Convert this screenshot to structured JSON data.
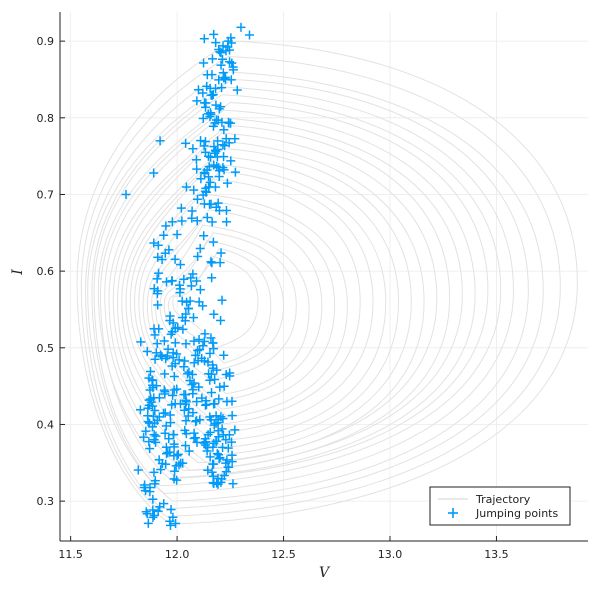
{
  "chart_data": {
    "type": "scatter",
    "xlabel": "V",
    "ylabel": "I",
    "xlim": [
      11.45,
      13.93
    ],
    "ylim": [
      0.248,
      0.938
    ],
    "x_ticks": [
      11.5,
      12.0,
      12.5,
      13.0,
      13.5
    ],
    "x_tick_labels": [
      "11.5",
      "12.0",
      "12.5",
      "13.0",
      "13.5"
    ],
    "y_ticks": [
      0.3,
      0.4,
      0.5,
      0.6,
      0.7,
      0.8,
      0.9
    ],
    "y_tick_labels": [
      "0.3",
      "0.4",
      "0.5",
      "0.6",
      "0.7",
      "0.8",
      "0.9"
    ],
    "grid": true,
    "legend_position": "bottom-right",
    "colors": {
      "trajectory": "#e2e2e2",
      "points": "#009af9",
      "grid": "#ebebeb",
      "axis": "#222222"
    },
    "series": [
      {
        "name": "Trajectory",
        "kind": "line",
        "curves": [
          {
            "top": [
              12.26,
              0.9
            ],
            "bottom": [
              11.97,
              0.27
            ],
            "vmax": 13.88,
            "vmin_left": 11.53
          },
          {
            "top": [
              12.24,
              0.88
            ],
            "bottom": [
              11.95,
              0.28
            ],
            "vmax": 13.8,
            "vmin_left": 11.55
          },
          {
            "top": [
              12.22,
              0.86
            ],
            "bottom": [
              11.93,
              0.29
            ],
            "vmax": 13.72,
            "vmin_left": 11.57
          },
          {
            "top": [
              12.26,
              0.85
            ],
            "bottom": [
              11.98,
              0.3
            ],
            "vmax": 13.65,
            "vmin_left": 11.58
          },
          {
            "top": [
              12.23,
              0.84
            ],
            "bottom": [
              11.94,
              0.31
            ],
            "vmax": 13.58,
            "vmin_left": 11.6
          },
          {
            "top": [
              12.21,
              0.83
            ],
            "bottom": [
              11.92,
              0.32
            ],
            "vmax": 13.52,
            "vmin_left": 11.61
          },
          {
            "top": [
              12.25,
              0.82
            ],
            "bottom": [
              12.0,
              0.33
            ],
            "vmax": 13.46,
            "vmin_left": 11.63
          },
          {
            "top": [
              12.22,
              0.81
            ],
            "bottom": [
              11.96,
              0.33
            ],
            "vmax": 13.4,
            "vmin_left": 11.64
          },
          {
            "top": [
              12.2,
              0.8
            ],
            "bottom": [
              12.03,
              0.34
            ],
            "vmax": 13.34,
            "vmin_left": 11.66
          },
          {
            "top": [
              12.24,
              0.79
            ],
            "bottom": [
              12.06,
              0.34
            ],
            "vmax": 13.28,
            "vmin_left": 11.68
          },
          {
            "top": [
              12.21,
              0.78
            ],
            "bottom": [
              12.1,
              0.35
            ],
            "vmax": 13.22,
            "vmin_left": 11.7
          },
          {
            "top": [
              12.18,
              0.77
            ],
            "bottom": [
              12.14,
              0.35
            ],
            "vmax": 13.16,
            "vmin_left": 11.72
          },
          {
            "top": [
              12.22,
              0.76
            ],
            "bottom": [
              12.18,
              0.36
            ],
            "vmax": 13.1,
            "vmin_left": 11.74
          },
          {
            "top": [
              12.19,
              0.75
            ],
            "bottom": [
              12.22,
              0.37
            ],
            "vmax": 13.04,
            "vmin_left": 11.76
          },
          {
            "top": [
              12.16,
              0.74
            ],
            "bottom": [
              12.25,
              0.38
            ],
            "vmax": 12.98,
            "vmin_left": 11.78
          },
          {
            "top": [
              12.2,
              0.73
            ],
            "bottom": [
              12.22,
              0.39
            ],
            "vmax": 12.92,
            "vmin_left": 11.8
          },
          {
            "top": [
              12.17,
              0.72
            ],
            "bottom": [
              12.19,
              0.4
            ],
            "vmax": 12.86,
            "vmin_left": 11.82
          },
          {
            "top": [
              12.14,
              0.7
            ],
            "bottom": [
              12.24,
              0.41
            ],
            "vmax": 12.8,
            "vmin_left": 11.84
          },
          {
            "top": [
              12.18,
              0.69
            ],
            "bottom": [
              12.21,
              0.42
            ],
            "vmax": 12.74,
            "vmin_left": 11.86
          },
          {
            "top": [
              12.15,
              0.68
            ],
            "bottom": [
              12.18,
              0.43
            ],
            "vmax": 12.68,
            "vmin_left": 11.88
          },
          {
            "top": [
              12.12,
              0.66
            ],
            "bottom": [
              12.23,
              0.44
            ],
            "vmax": 12.62,
            "vmin_left": 11.9
          },
          {
            "top": [
              12.17,
              0.65
            ],
            "bottom": [
              12.2,
              0.46
            ],
            "vmax": 12.56,
            "vmin_left": 11.92
          },
          {
            "top": [
              12.14,
              0.64
            ],
            "bottom": [
              12.17,
              0.47
            ],
            "vmax": 12.5,
            "vmin_left": 11.94
          },
          {
            "top": [
              12.2,
              0.63
            ],
            "bottom": [
              12.22,
              0.48
            ],
            "vmax": 12.44,
            "vmin_left": 11.96
          },
          {
            "top": [
              12.16,
              0.62
            ],
            "bottom": [
              12.18,
              0.5
            ],
            "vmax": 12.38,
            "vmin_left": 11.98
          }
        ]
      },
      {
        "name": "Jumping points",
        "kind": "scatter",
        "marker": "+",
        "clusters": [
          {
            "cx": 12.22,
            "cy": 0.88,
            "sx": 0.035,
            "sy": 0.025,
            "n": 22
          },
          {
            "cx": 12.18,
            "cy": 0.81,
            "sx": 0.045,
            "sy": 0.035,
            "n": 48
          },
          {
            "cx": 12.16,
            "cy": 0.74,
            "sx": 0.055,
            "sy": 0.03,
            "n": 38
          },
          {
            "cx": 12.12,
            "cy": 0.67,
            "sx": 0.08,
            "sy": 0.035,
            "n": 26
          },
          {
            "cx": 11.96,
            "cy": 0.6,
            "sx": 0.05,
            "sy": 0.03,
            "n": 20
          },
          {
            "cx": 12.12,
            "cy": 0.55,
            "sx": 0.08,
            "sy": 0.03,
            "n": 24
          },
          {
            "cx": 11.98,
            "cy": 0.5,
            "sx": 0.06,
            "sy": 0.03,
            "n": 38
          },
          {
            "cx": 12.14,
            "cy": 0.48,
            "sx": 0.07,
            "sy": 0.035,
            "n": 36
          },
          {
            "cx": 11.9,
            "cy": 0.42,
            "sx": 0.04,
            "sy": 0.03,
            "n": 30
          },
          {
            "cx": 12.05,
            "cy": 0.42,
            "sx": 0.08,
            "sy": 0.03,
            "n": 40
          },
          {
            "cx": 12.18,
            "cy": 0.38,
            "sx": 0.05,
            "sy": 0.02,
            "n": 30
          },
          {
            "cx": 11.98,
            "cy": 0.37,
            "sx": 0.07,
            "sy": 0.025,
            "n": 44
          },
          {
            "cx": 12.2,
            "cy": 0.34,
            "sx": 0.04,
            "sy": 0.012,
            "n": 22
          },
          {
            "cx": 11.87,
            "cy": 0.31,
            "sx": 0.02,
            "sy": 0.015,
            "n": 8
          },
          {
            "cx": 11.9,
            "cy": 0.285,
            "sx": 0.035,
            "sy": 0.006,
            "n": 10
          },
          {
            "cx": 11.97,
            "cy": 0.268,
            "sx": 0.012,
            "sy": 0.004,
            "n": 4
          }
        ],
        "singles": [
          [
            11.76,
            0.7
          ],
          [
            12.3,
            0.918
          ],
          [
            12.34,
            0.908
          ],
          [
            11.89,
            0.728
          ],
          [
            11.92,
            0.77
          ]
        ]
      }
    ]
  }
}
